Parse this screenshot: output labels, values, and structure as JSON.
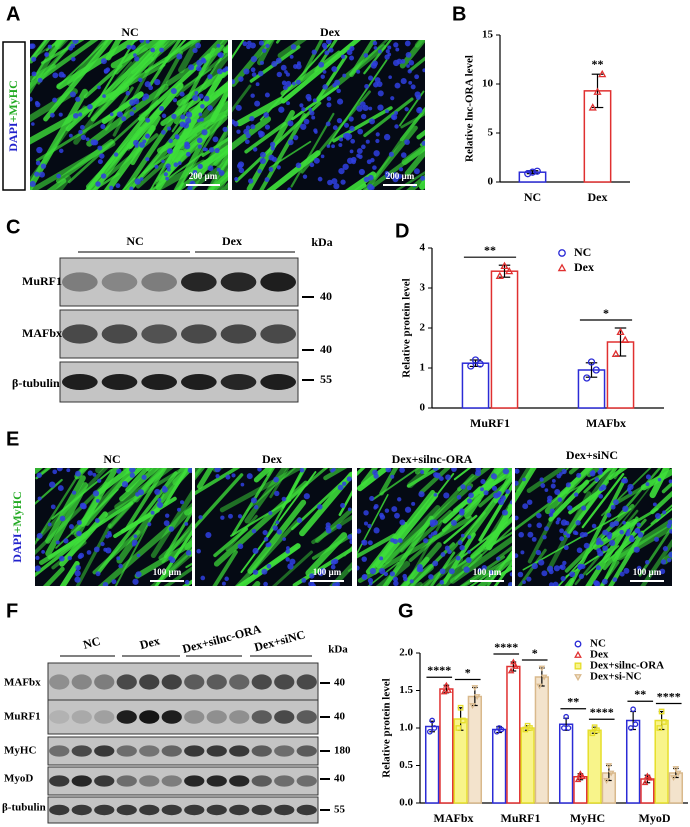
{
  "panels": {
    "letters": [
      "A",
      "B",
      "C",
      "D",
      "E",
      "F",
      "G"
    ],
    "A": {
      "stain": [
        "DAPI",
        "+",
        "MyHC"
      ],
      "titles": [
        "NC",
        "Dex"
      ],
      "scale": "200 µm"
    },
    "C": {
      "groups": [
        "NC",
        "Dex"
      ],
      "unit": "kDa",
      "rows": [
        "MuRF1",
        "MAFbx",
        "β-tubulin"
      ],
      "markers": [
        40,
        40,
        55
      ]
    },
    "E": {
      "stain": [
        "DAPI",
        "+",
        "MyHC"
      ],
      "titles": [
        "NC",
        "Dex",
        "Dex+silnc-ORA",
        "Dex+siNC"
      ],
      "scale": "100 µm"
    },
    "F": {
      "groups": [
        "NC",
        "Dex",
        "Dex+silnc-ORA",
        "Dex+siNC"
      ],
      "unit": "kDa",
      "rows": [
        "MAFbx",
        "MuRF1",
        "MyHC",
        "MyoD",
        "β-tubulin"
      ],
      "markers": [
        40,
        40,
        180,
        40,
        55
      ]
    }
  },
  "chart_data": [
    {
      "type": "bar",
      "ylabel": "Relative lnc-ORA level",
      "categories": [
        "NC",
        "Dex"
      ],
      "values": [
        1.0,
        9.3
      ],
      "errors": [
        0.15,
        1.7
      ],
      "points": [
        [
          0.85,
          1.0,
          1.1
        ],
        [
          7.6,
          9.2,
          11.0
        ]
      ],
      "colors": [
        "#2b2bd6",
        "#e03030"
      ],
      "markers": [
        "circle",
        "triangle"
      ],
      "ylim": [
        0,
        15
      ],
      "yticks": [
        0,
        5,
        10,
        15
      ],
      "annotations": [
        {
          "text": "**",
          "category": 1
        }
      ]
    },
    {
      "type": "bar",
      "ylabel": "Relative protein level",
      "categories": [
        "MuRF1",
        "MAFbx"
      ],
      "series": [
        {
          "name": "NC",
          "color": "#2b2bd6",
          "marker": "circle",
          "values": [
            1.12,
            0.95
          ],
          "errors": [
            0.08,
            0.18
          ],
          "points": [
            [
              1.05,
              1.2,
              1.1
            ],
            [
              0.75,
              1.15,
              0.95
            ]
          ]
        },
        {
          "name": "Dex",
          "color": "#e03030",
          "marker": "triangle",
          "values": [
            3.42,
            1.65
          ],
          "errors": [
            0.15,
            0.35
          ],
          "points": [
            [
              3.3,
              3.55,
              3.42
            ],
            [
              1.35,
              1.9,
              1.7
            ]
          ]
        }
      ],
      "ylim": [
        0,
        4
      ],
      "yticks": [
        0,
        1,
        2,
        3,
        4
      ],
      "legend": "upper right",
      "annotations": [
        {
          "text": "**",
          "category": 0,
          "series": [
            0,
            1
          ]
        },
        {
          "text": "*",
          "category": 1,
          "series": [
            0,
            1
          ]
        }
      ]
    },
    {
      "type": "bar",
      "ylabel": "Relative protein level",
      "categories": [
        "MAFbx",
        "MuRF1",
        "MyHC",
        "MyoD"
      ],
      "series": [
        {
          "name": "NC",
          "color": "#2b2bd6",
          "marker": "circle",
          "values": [
            1.02,
            0.98,
            1.05,
            1.1
          ],
          "errors": [
            0.07,
            0.04,
            0.08,
            0.12
          ],
          "points": [
            [
              0.95,
              1.1,
              1.0
            ],
            [
              0.95,
              1.0,
              0.98
            ],
            [
              1.0,
              1.15,
              1.0
            ],
            [
              1.0,
              1.25,
              1.05
            ]
          ]
        },
        {
          "name": "Dex",
          "color": "#e03030",
          "marker": "triangle",
          "values": [
            1.52,
            1.82,
            0.35,
            0.32
          ],
          "errors": [
            0.05,
            0.06,
            0.04,
            0.05
          ],
          "points": [
            [
              1.48,
              1.57,
              1.5
            ],
            [
              1.76,
              1.88,
              1.82
            ],
            [
              0.31,
              0.39,
              0.35
            ],
            [
              0.27,
              0.36,
              0.33
            ]
          ]
        },
        {
          "name": "Dex+silnc-ORA",
          "color": "#e6de2a",
          "fill": "#f8f48a",
          "marker": "square",
          "values": [
            1.12,
            1.0,
            0.97,
            1.1
          ],
          "errors": [
            0.15,
            0.03,
            0.04,
            0.12
          ],
          "points": [
            [
              1.0,
              1.27,
              1.1
            ],
            [
              0.98,
              1.03,
              1.0
            ],
            [
              0.93,
              1.01,
              0.97
            ],
            [
              1.0,
              1.22,
              1.08
            ]
          ]
        },
        {
          "name": "Dex+si-NC",
          "color": "#d9b98c",
          "fill": "#f3e3cc",
          "marker": "triangle-down",
          "values": [
            1.42,
            1.68,
            0.4,
            0.4
          ],
          "errors": [
            0.12,
            0.12,
            0.1,
            0.06
          ],
          "points": [
            [
              1.3,
              1.54,
              1.42
            ],
            [
              1.56,
              1.8,
              1.68
            ],
            [
              0.3,
              0.5,
              0.4
            ],
            [
              0.34,
              0.46,
              0.4
            ]
          ]
        }
      ],
      "ylim": [
        0,
        2
      ],
      "yticks": [
        {
          "value": 0,
          "label": "0.0"
        },
        {
          "value": 0.5,
          "label": "0.5"
        },
        {
          "value": 1,
          "label": "1.0"
        },
        {
          "value": 1.5,
          "label": "1.5"
        },
        {
          "value": 2,
          "label": "2.0"
        }
      ],
      "legend": "upper right",
      "annotations": [
        {
          "text": "****",
          "category": 0,
          "series": [
            0,
            1
          ]
        },
        {
          "text": "*",
          "category": 0,
          "series": [
            2,
            3
          ]
        },
        {
          "text": "****",
          "category": 1,
          "series": [
            0,
            1
          ]
        },
        {
          "text": "*",
          "category": 1,
          "series": [
            2,
            3
          ]
        },
        {
          "text": "**",
          "category": 2,
          "series": [
            0,
            1
          ]
        },
        {
          "text": "****",
          "category": 2,
          "series": [
            2,
            3
          ]
        },
        {
          "text": "**",
          "category": 3,
          "series": [
            0,
            1
          ]
        },
        {
          "text": "****",
          "category": 3,
          "series": [
            2,
            3
          ]
        }
      ]
    }
  ]
}
